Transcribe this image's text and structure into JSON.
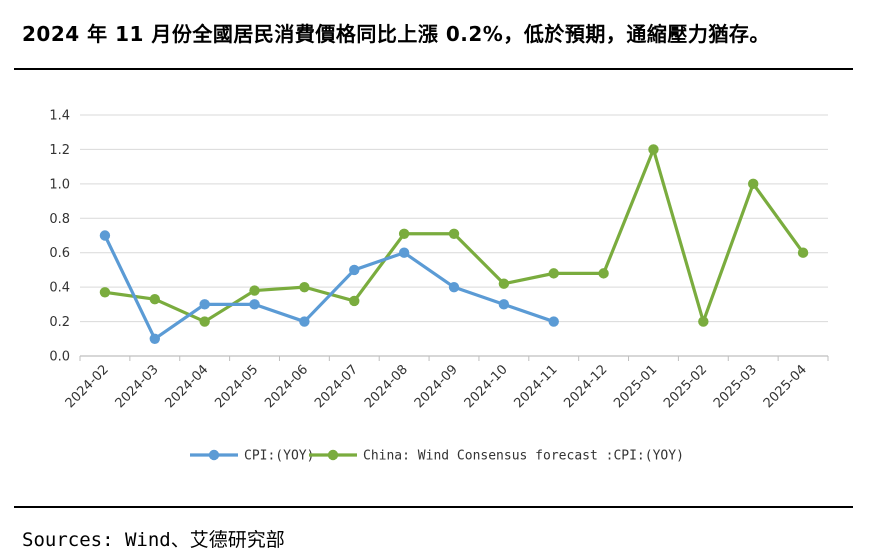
{
  "header": {
    "title": "2024 年 11 月份全國居民消費價格同比上漲 0.2%，低於預期，通縮壓力猶存。"
  },
  "footer": {
    "source": "Sources: Wind、艾德研究部"
  },
  "colors": {
    "cpi": "#5b9bd5",
    "forecast": "#7aac3e",
    "grid": "#d9d9d9",
    "axis": "#bfbfbf"
  },
  "chart_data": {
    "type": "line",
    "categories": [
      "2024-02",
      "2024-03",
      "2024-04",
      "2024-05",
      "2024-06",
      "2024-07",
      "2024-08",
      "2024-09",
      "2024-10",
      "2024-11",
      "2024-12",
      "2025-01",
      "2025-02",
      "2025-03",
      "2025-04"
    ],
    "ylim": [
      0,
      1.4
    ],
    "yticks": [
      "0.0",
      "0.2",
      "0.4",
      "0.6",
      "0.8",
      "1.0",
      "1.2",
      "1.4"
    ],
    "grid": true,
    "legend_position": "bottom",
    "series": [
      {
        "name": "CPI:(YOY)",
        "color_key": "cpi",
        "values": [
          0.7,
          0.1,
          0.3,
          0.3,
          0.2,
          0.5,
          0.6,
          0.4,
          0.3,
          0.2,
          null,
          null,
          null,
          null,
          null
        ]
      },
      {
        "name": "China: Wind Consensus forecast :CPI:(YOY)",
        "color_key": "forecast",
        "values": [
          0.37,
          0.33,
          0.2,
          0.38,
          0.4,
          0.32,
          0.71,
          0.71,
          0.42,
          0.48,
          0.48,
          1.2,
          0.2,
          1.0,
          0.6
        ]
      }
    ]
  }
}
